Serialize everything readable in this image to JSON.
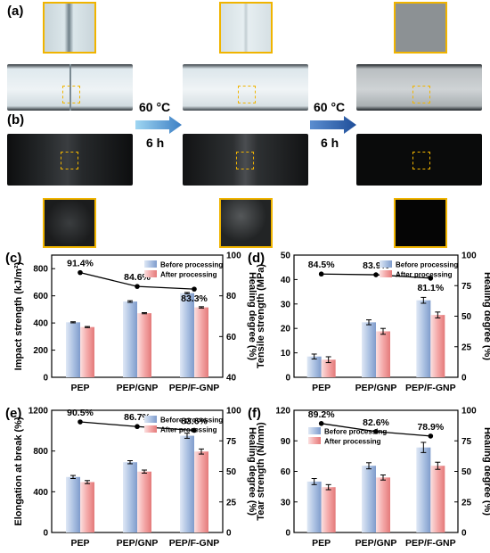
{
  "photo_panel": {
    "label_a": "(a)",
    "label_b": "(b)",
    "step1": {
      "temp": "60 °C",
      "time": "6 h"
    },
    "step2": {
      "temp": "60 °C",
      "time": "6 h"
    }
  },
  "colors": {
    "before": "#aec3e3",
    "after": "#f4a8a8",
    "highlight": "#f0b400",
    "arrow": "#3d7fc4"
  },
  "legend": {
    "before": "Before processing",
    "after": "After processing"
  },
  "chart_data": [
    {
      "panel": "(c)",
      "type": "bar",
      "categories": [
        "PEP",
        "PEP/GNP",
        "PEP/F-GNP"
      ],
      "series": [
        {
          "name": "Before processing",
          "values": [
            405,
            558,
            620
          ],
          "errors": [
            4,
            6,
            5
          ]
        },
        {
          "name": "After processing",
          "values": [
            370,
            472,
            515
          ],
          "errors": [
            4,
            4,
            5
          ]
        }
      ],
      "healing": {
        "values": [
          91.4,
          84.6,
          83.3
        ],
        "labels": [
          "91.4%",
          "84.6%",
          "83.3%"
        ]
      },
      "ylabel": "Impact strength (kJ/m²)",
      "y2label": "Healing degree (%)",
      "ylim": [
        0,
        900
      ],
      "yticks": [
        "0",
        "200",
        "400",
        "600",
        "800"
      ],
      "yticks_v": [
        0,
        200,
        400,
        600,
        800
      ],
      "y2lim": [
        40,
        100
      ],
      "y2ticks": [
        "40",
        "60",
        "80",
        "100"
      ],
      "y2ticks_v": [
        40,
        60,
        80,
        100
      ]
    },
    {
      "panel": "(d)",
      "type": "bar",
      "categories": [
        "PEP",
        "PEP/GNP",
        "PEP/F-GNP"
      ],
      "series": [
        {
          "name": "Before processing",
          "values": [
            8.5,
            22.5,
            31.5
          ],
          "errors": [
            1.0,
            1.0,
            1.2
          ]
        },
        {
          "name": "After processing",
          "values": [
            7.2,
            18.8,
            25.5
          ],
          "errors": [
            1.2,
            1.2,
            1.2
          ]
        }
      ],
      "healing": {
        "values": [
          84.5,
          83.9,
          81.1
        ],
        "labels": [
          "84.5%",
          "83.9%",
          "81.1%"
        ]
      },
      "ylabel": "Tensile strength (MPa)",
      "y2label": "Healing degree (%)",
      "ylim": [
        0,
        50
      ],
      "yticks": [
        "0",
        "10",
        "20",
        "30",
        "40",
        "50"
      ],
      "yticks_v": [
        0,
        10,
        20,
        30,
        40,
        50
      ],
      "y2lim": [
        0,
        100
      ],
      "y2ticks": [
        "0",
        "25",
        "50",
        "75",
        "100"
      ],
      "y2ticks_v": [
        0,
        25,
        50,
        75,
        100
      ]
    },
    {
      "panel": "(e)",
      "type": "bar",
      "categories": [
        "PEP",
        "PEP/GNP",
        "PEP/F-GNP"
      ],
      "series": [
        {
          "name": "Before processing",
          "values": [
            545,
            690,
            950
          ],
          "errors": [
            15,
            15,
            25
          ]
        },
        {
          "name": "After processing",
          "values": [
            495,
            598,
            795
          ],
          "errors": [
            15,
            15,
            25
          ]
        }
      ],
      "healing": {
        "values": [
          90.5,
          86.7,
          83.6
        ],
        "labels": [
          "90.5%",
          "86.7%",
          "83.6%"
        ]
      },
      "ylabel": "Elongation at break (%)",
      "y2label": "Healing degree (%)",
      "ylim": [
        0,
        1200
      ],
      "yticks": [
        "0",
        "400",
        "800",
        "1200"
      ],
      "yticks_v": [
        0,
        400,
        800,
        1200
      ],
      "y2lim": [
        0,
        100
      ],
      "y2ticks": [
        "0",
        "25",
        "50",
        "75",
        "100"
      ],
      "y2ticks_v": [
        0,
        25,
        50,
        75,
        100
      ]
    },
    {
      "panel": "(f)",
      "type": "bar",
      "categories": [
        "PEP",
        "PEP/GNP",
        "PEP/F-GNP"
      ],
      "series": [
        {
          "name": "Before processing",
          "values": [
            50,
            65.5,
            83.5
          ],
          "errors": [
            3.0,
            3.0,
            5.0
          ]
        },
        {
          "name": "After processing",
          "values": [
            44.5,
            54,
            65.5
          ],
          "errors": [
            2.5,
            2.5,
            3.5
          ]
        }
      ],
      "healing": {
        "values": [
          89.2,
          82.6,
          78.9
        ],
        "labels": [
          "89.2%",
          "82.6%",
          "78.9%"
        ]
      },
      "ylabel": "Tear strength (N/mm)",
      "y2label": "Healing degree (%)",
      "ylim": [
        0,
        120
      ],
      "yticks": [
        "0",
        "30",
        "60",
        "90",
        "120"
      ],
      "yticks_v": [
        0,
        30,
        60,
        90,
        120
      ],
      "y2lim": [
        0,
        100
      ],
      "y2ticks": [
        "0",
        "25",
        "50",
        "75",
        "100"
      ],
      "y2ticks_v": [
        0,
        25,
        50,
        75,
        100
      ]
    }
  ]
}
